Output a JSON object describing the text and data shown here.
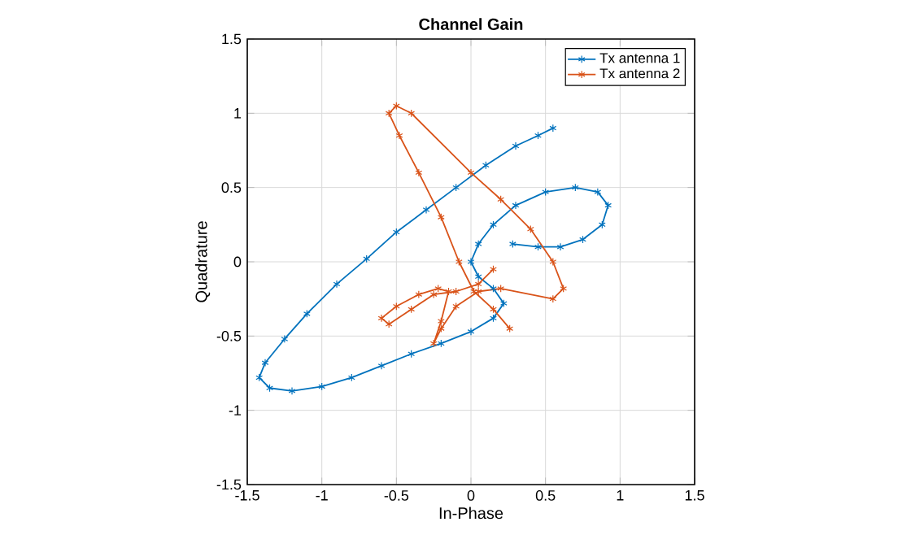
{
  "chart_data": {
    "type": "line",
    "title": "Channel Gain",
    "xlabel": "In-Phase",
    "ylabel": "Quadrature",
    "xlim": [
      -1.5,
      1.5
    ],
    "ylim": [
      -1.5,
      1.5
    ],
    "xticks": [
      -1.5,
      -1,
      -0.5,
      0,
      0.5,
      1,
      1.5
    ],
    "yticks": [
      -1.5,
      -1,
      -0.5,
      0,
      0.5,
      1,
      1.5
    ],
    "grid": true,
    "legend": "top right",
    "marker": "cross",
    "line_style": "solid",
    "series": [
      {
        "name": "Tx antenna 1",
        "color": "#0072bd",
        "x": [
          0.55,
          0.45,
          0.3,
          0.1,
          -0.1,
          -0.3,
          -0.5,
          -0.7,
          -0.9,
          -1.1,
          -1.25,
          -1.38,
          -1.42,
          -1.35,
          -1.2,
          -1.0,
          -0.8,
          -0.6,
          -0.4,
          -0.2,
          0.0,
          0.15,
          0.22,
          0.15,
          0.05,
          0.0,
          0.05,
          0.15,
          0.3,
          0.5,
          0.7,
          0.85,
          0.92,
          0.88,
          0.75,
          0.6,
          0.45,
          0.28
        ],
        "values": [
          0.9,
          0.85,
          0.78,
          0.65,
          0.5,
          0.35,
          0.2,
          0.02,
          -0.15,
          -0.35,
          -0.52,
          -0.68,
          -0.78,
          -0.85,
          -0.87,
          -0.84,
          -0.78,
          -0.7,
          -0.62,
          -0.55,
          -0.47,
          -0.38,
          -0.28,
          -0.18,
          -0.1,
          0.0,
          0.12,
          0.25,
          0.38,
          0.47,
          0.5,
          0.47,
          0.38,
          0.25,
          0.15,
          0.1,
          0.1,
          0.12
        ]
      },
      {
        "name": "Tx antenna 2",
        "color": "#d95319",
        "x": [
          0.26,
          0.15,
          0.02,
          -0.08,
          -0.2,
          -0.35,
          -0.48,
          -0.55,
          -0.5,
          -0.4,
          0.0,
          0.2,
          0.4,
          0.55,
          0.62,
          0.55,
          0.2,
          0.05,
          -0.1,
          -0.2,
          -0.25,
          -0.2,
          -0.15,
          -0.22,
          -0.35,
          -0.5,
          -0.6,
          -0.55,
          -0.4,
          -0.25,
          -0.1,
          0.05,
          0.15
        ],
        "values": [
          -0.45,
          -0.32,
          -0.2,
          0.0,
          0.3,
          0.6,
          0.85,
          1.0,
          1.05,
          1.0,
          0.6,
          0.42,
          0.22,
          0.0,
          -0.18,
          -0.25,
          -0.18,
          -0.2,
          -0.3,
          -0.45,
          -0.55,
          -0.4,
          -0.2,
          -0.18,
          -0.22,
          -0.3,
          -0.38,
          -0.42,
          -0.32,
          -0.22,
          -0.2,
          -0.15,
          -0.05
        ]
      }
    ]
  }
}
